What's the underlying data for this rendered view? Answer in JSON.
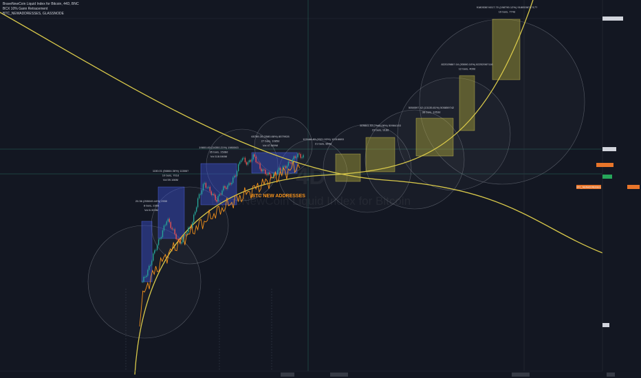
{
  "legend": {
    "symbol": "BraveNewCoin Liquid Index for Bitcoin, 44D, BNC",
    "indicator_1": "BCX 10% Gann Retracement",
    "indicator_2": "BTC_NEWADDRESSES, GLASSNODE"
  },
  "watermark": {
    "big": "4D",
    "name": "BraveNewCoin Liquid Index for Bitcoin"
  },
  "overlay_label": "BTC NEW ADDRESSES",
  "colors": {
    "background": "#131722",
    "candle_up": "#26a69a",
    "candle_down": "#ef5350",
    "curve": "#d9c94a",
    "addresses_line": "#f7931a",
    "rally_box": "#3a4fd0",
    "projection_box": "#b8ad3a",
    "circle_stroke": "#8a8f9a",
    "axis_badge_orange": "#e8752a",
    "axis_badge_green": "#26a65a"
  },
  "chart_data": {
    "type": "line",
    "title": "BraveNewCoin Liquid Index for Bitcoin, 44D, BNC",
    "series": [
      {
        "name": "BraveNewCoin Liquid Index for Bitcoin",
        "style": "candles",
        "values": [
          20.36,
          45,
          150,
          380,
          1150,
          520,
          230,
          450,
          780,
          4200,
          11000,
          6500,
          3700,
          7800,
          9800,
          18000,
          58000,
          38000,
          65000,
          29000,
          21000,
          16500,
          26000,
          31000,
          44000,
          69000,
          59000
        ]
      },
      {
        "name": "BTC_NEWADDRESSES, GLASSNODE",
        "style": "line"
      }
    ],
    "annotations": [
      {
        "text": [
          "20.36 (255049.44%) 2930",
          "8 bars, 235d",
          "Vol 6.323M"
        ],
        "kind": "historical"
      },
      {
        "text": [
          "1150.01 (56664.36%) 11386?",
          "10 bars, 701d",
          "Vol 59.166M"
        ],
        "kind": "historical"
      },
      {
        "text": [
          "19800.83 (34350.21%) 1980063",
          "35 bars, 1538d",
          "Vol 118.046M"
        ],
        "kind": "historical"
      },
      {
        "text": [
          "65789.28 (3580.88%) 8579928",
          "27 bars, 1085d",
          "Vol 47.869M"
        ],
        "kind": "historical"
      },
      {
        "text": [
          "103168.83 (3321.53%) 10316883",
          "21 bars, 865d"
        ],
        "kind": "projection"
      },
      {
        "text": [
          "509841.53 (7948.08%) 50984153",
          "23 bars, 918d"
        ],
        "kind": "projection"
      },
      {
        "text": [
          "5058597.42 (13135.81%) 505859742",
          "38 bars, 1053d"
        ],
        "kind": "projection"
      },
      {
        "text": [
          "82202986?.16 (93080.10%) 8220298?116",
          "12 bars, 409d"
        ],
        "kind": "projection"
      },
      {
        "text": [
          "9180536?4017.70 (198790.12%) 918053674?17?",
          "19 bars, 774d"
        ],
        "kind": "projection"
      }
    ],
    "grid": true,
    "log_scale": true
  },
  "price_scale": {
    "badges": [
      {
        "text": "",
        "color": "#d1d4dc",
        "tag": "upper-reference"
      },
      {
        "text": "",
        "color": "#d1d4dc",
        "tag": "mid-reference"
      },
      {
        "text": "",
        "color": "#e8752a",
        "tag": "last-price"
      },
      {
        "text": "",
        "color": "#26a65a",
        "tag": "green-level"
      },
      {
        "text": "BTC_NEWADDRESSES",
        "color": "#e8752a",
        "tag": "addresses-label"
      },
      {
        "text": "",
        "color": "#e8752a",
        "tag": "addresses-value"
      },
      {
        "text": "",
        "color": "#d1d4dc",
        "tag": "lower-reference"
      }
    ]
  },
  "time_axis": {
    "labels": [
      "",
      "",
      "",
      "",
      "",
      "",
      "",
      "",
      ""
    ]
  }
}
